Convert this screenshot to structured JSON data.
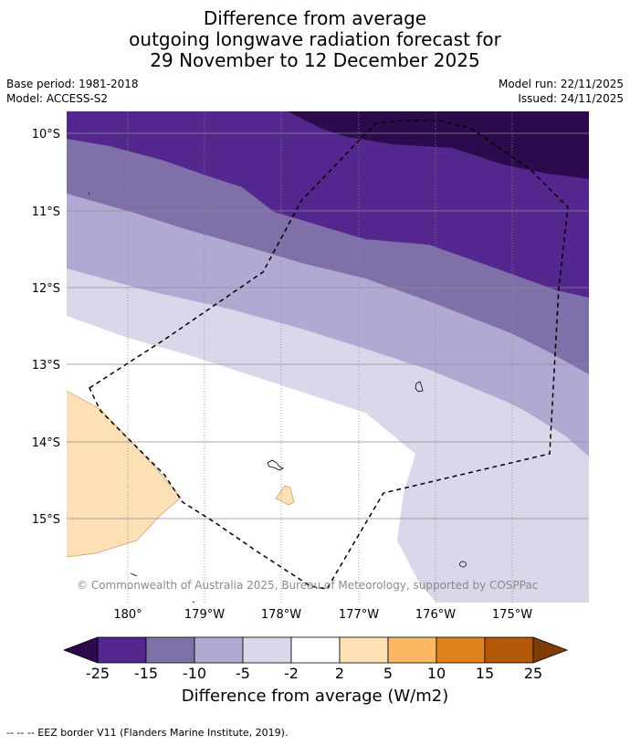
{
  "title": {
    "line1": "Difference from average",
    "line2": "outgoing longwave radiation forecast for",
    "line3": "29 November to 12 December 2025"
  },
  "meta": {
    "base_period": "Base period: 1981-2018",
    "model": "Model: ACCESS-S2",
    "model_run": "Model run: 22/11/2025",
    "issued": "Issued: 24/11/2025"
  },
  "map": {
    "lat_labels": [
      "10°S",
      "11°S",
      "12°S",
      "13°S",
      "14°S",
      "15°S"
    ],
    "lon_labels": [
      "180°",
      "179°W",
      "178°W",
      "177°W",
      "176°W",
      "175°W"
    ],
    "copyright": "© Commonwealth of Australia 2025, Bureau of Meteorology, supported by COSPPac"
  },
  "colorbar": {
    "title": "Difference from average (W/m2)",
    "labels": [
      "-25",
      "-15",
      "-10",
      "-5",
      "-2",
      "2",
      "5",
      "10",
      "15",
      "25"
    ],
    "colors": {
      "below_min": "#2c0a4e",
      "n25_n15": "#54278f",
      "n15_n10": "#7f70aa",
      "n10_n5": "#b0aad2",
      "n5_n2": "#d8d8ea",
      "n2_p2": "#ffffff",
      "p2_p5": "#fde0b6",
      "p5_p10": "#fbb761",
      "p10_p15": "#e0821c",
      "p15_p25": "#b35808",
      "above_max": "#7f3b08"
    }
  },
  "footer": {
    "legend": "--  --  -- EEZ border V11 (Flanders Marine Institute, 2019)."
  }
}
